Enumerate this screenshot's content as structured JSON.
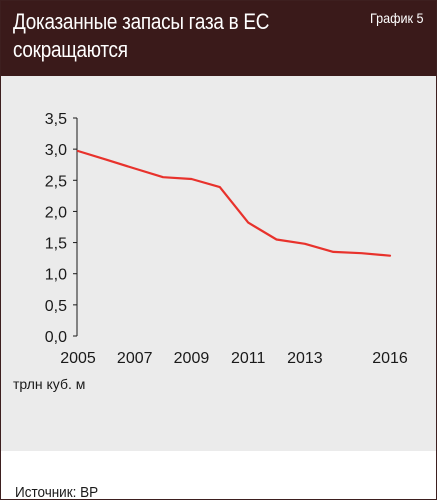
{
  "header": {
    "title": "Доказанные запасы газа в ЕС\nсокращаются",
    "badge": "График 5"
  },
  "source": "Источник: BP",
  "colors": {
    "header_bg": "#3a1a1a",
    "plot_bg": "#ebebeb",
    "line": "#e8322c",
    "axis": "#1a1a1a"
  },
  "chart_data": {
    "type": "line",
    "title": "Доказанные запасы газа в ЕС сокращаются",
    "ylabel": "трлн куб. м",
    "xlabel": "",
    "ylim": [
      0,
      3.5
    ],
    "yticks": [
      "0,0",
      "0,5",
      "1,0",
      "1,5",
      "2,0",
      "2,5",
      "3,0",
      "3,5"
    ],
    "xticks": [
      "2005",
      "2007",
      "2009",
      "2011",
      "2013",
      "2016"
    ],
    "grid": false,
    "series": [
      {
        "x": [
          2005,
          2006,
          2007,
          2008,
          2009,
          2010,
          2011,
          2012,
          2013,
          2014,
          2015,
          2016
        ],
        "values": [
          2.97,
          2.83,
          2.69,
          2.55,
          2.52,
          2.39,
          1.82,
          1.55,
          1.48,
          1.35,
          1.33,
          1.29
        ]
      }
    ]
  }
}
